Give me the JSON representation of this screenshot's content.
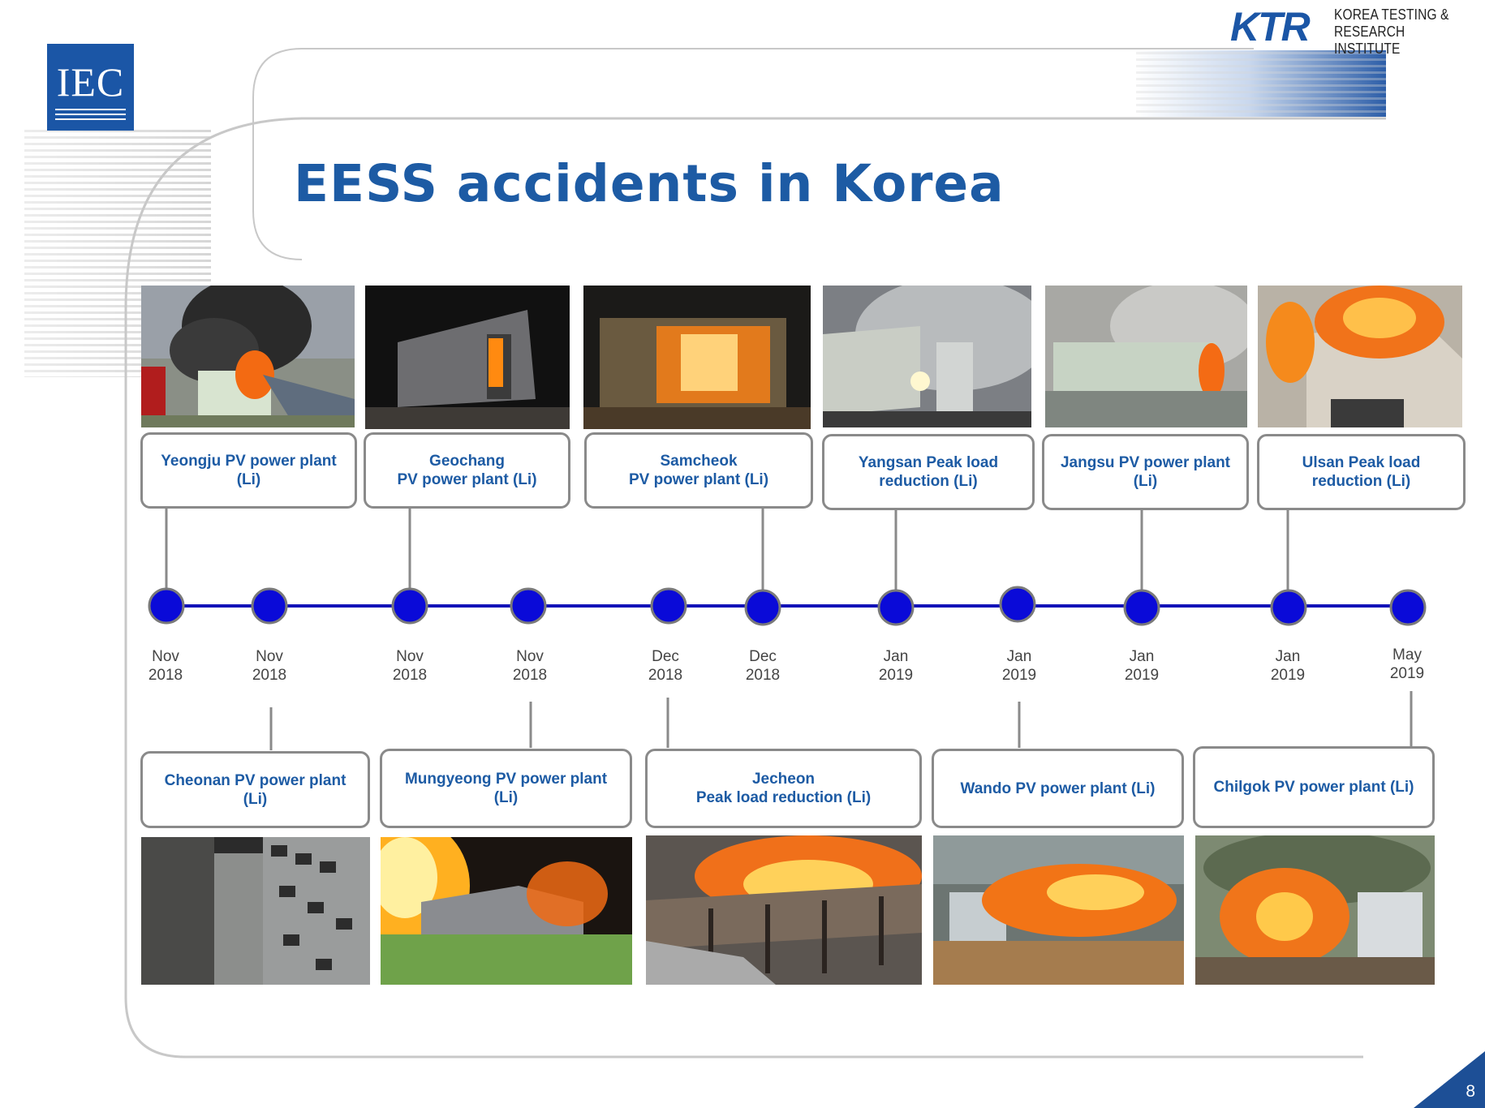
{
  "header": {
    "title": "EESS accidents in Korea",
    "iec_logo": "IEC",
    "ktr_logo": "KTR",
    "ktr_name": "KOREA TESTING &\nRESEARCH INSTITUTE"
  },
  "accidents_top": [
    {
      "label": "Yeongju PV power plant\n(Li)",
      "date": "Nov\n2018"
    },
    {
      "label": "Geochang\nPV power plant (Li)",
      "date": "Nov\n2018"
    },
    {
      "label": "Samcheok\nPV power plant (Li)",
      "date": "Dec\n2018"
    },
    {
      "label": "Yangsan Peak load\nreduction (Li)",
      "date": "Jan\n2019"
    },
    {
      "label": "Jangsu PV power plant\n(Li)",
      "date": "Jan\n2019"
    },
    {
      "label": "Ulsan Peak load\nreduction (Li)",
      "date": "Jan\n2019"
    }
  ],
  "accidents_bottom": [
    {
      "label": "Cheonan PV power plant\n(Li)",
      "date": "Nov\n2018"
    },
    {
      "label": "Mungyeong PV power plant\n(Li)",
      "date": "Nov\n2018"
    },
    {
      "label": "Jecheon\nPeak load reduction (Li)",
      "date": "Dec\n2018"
    },
    {
      "label": "Wando PV power plant (Li)",
      "date": "Jan\n2019"
    },
    {
      "label": "Chilgok PV power plant (Li)",
      "date": "May\n2019"
    }
  ],
  "timeline_dates": [
    "Nov\n2018",
    "Nov\n2018",
    "Nov\n2018",
    "Nov\n2018",
    "Dec\n2018",
    "Dec\n2018",
    "Jan\n2019",
    "Jan\n2019",
    "Jan\n2019",
    "Jan\n2019",
    "May\n2019"
  ],
  "colors": {
    "accent": "#1d5ba4",
    "node": "#0a0ad8",
    "line": "#1212b8",
    "border": "#8a8a8a"
  },
  "page_number": "8"
}
